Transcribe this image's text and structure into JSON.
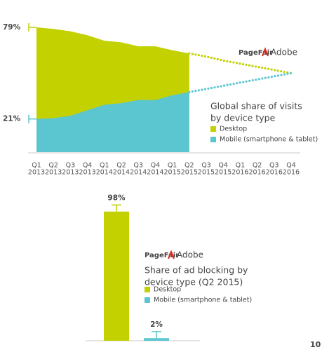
{
  "chart_data": [
    {
      "type": "area",
      "logos": [
        "PageFair",
        "Adobe"
      ],
      "title": [
        "Global share of visits",
        "by device type"
      ],
      "categories": [
        [
          "Q1",
          "2013"
        ],
        [
          "Q2",
          "2013"
        ],
        [
          "Q3",
          "2013"
        ],
        [
          "Q4",
          "2013"
        ],
        [
          "Q1",
          "2014"
        ],
        [
          "Q2",
          "2014"
        ],
        [
          "Q3",
          "2014"
        ],
        [
          "Q4",
          "2014"
        ],
        [
          "Q1",
          "2015"
        ],
        [
          "Q2",
          "2015"
        ],
        [
          "Q3",
          "2015"
        ],
        [
          "Q4",
          "2015"
        ],
        [
          "Q1",
          "2016"
        ],
        [
          "Q2",
          "2016"
        ],
        [
          "Q3",
          "2016"
        ],
        [
          "Q4",
          "2016"
        ]
      ],
      "ylim": [
        0,
        90
      ],
      "series": [
        {
          "name": "Desktop",
          "color": "#c3d100",
          "values": [
            79,
            78,
            76.5,
            74,
            70.5,
            69.5,
            67,
            67,
            64.5,
            62.5,
            null,
            null,
            null,
            null,
            null,
            null
          ],
          "value_labels": [
            "79%",
            null,
            null,
            null,
            null,
            null,
            null,
            null,
            null,
            null,
            null,
            null,
            null,
            null,
            null,
            null
          ],
          "projected_values": [
            null,
            null,
            null,
            null,
            null,
            null,
            null,
            null,
            null,
            62.5,
            60.5,
            58,
            56,
            54,
            52,
            50
          ]
        },
        {
          "name": "Mobile (smartphone & tablet)",
          "color": "#5bc6d0",
          "values": [
            21,
            21.5,
            23,
            26.5,
            30,
            31,
            33,
            33,
            36,
            38,
            null,
            null,
            null,
            null,
            null,
            null
          ],
          "value_labels": [
            "21%",
            null,
            null,
            null,
            null,
            null,
            null,
            null,
            null,
            null,
            null,
            null,
            null,
            null,
            null,
            null
          ],
          "projected_values": [
            null,
            null,
            null,
            null,
            null,
            null,
            null,
            null,
            null,
            38,
            40,
            42,
            44,
            46,
            48,
            50
          ]
        }
      ]
    },
    {
      "type": "bar",
      "logos": [
        "PageFair",
        "Adobe"
      ],
      "title": [
        "Share of ad blocking by",
        "device type (Q2 2015)"
      ],
      "categories": [
        "Desktop",
        "Mobile (smartphone & tablet)"
      ],
      "colors": [
        "#c3d100",
        "#5bc6d0"
      ],
      "values": [
        98,
        2
      ],
      "value_labels": [
        "98%",
        "2%"
      ],
      "errors": [
        5,
        5
      ],
      "ylim": [
        0,
        100
      ]
    }
  ],
  "page_number": "10"
}
